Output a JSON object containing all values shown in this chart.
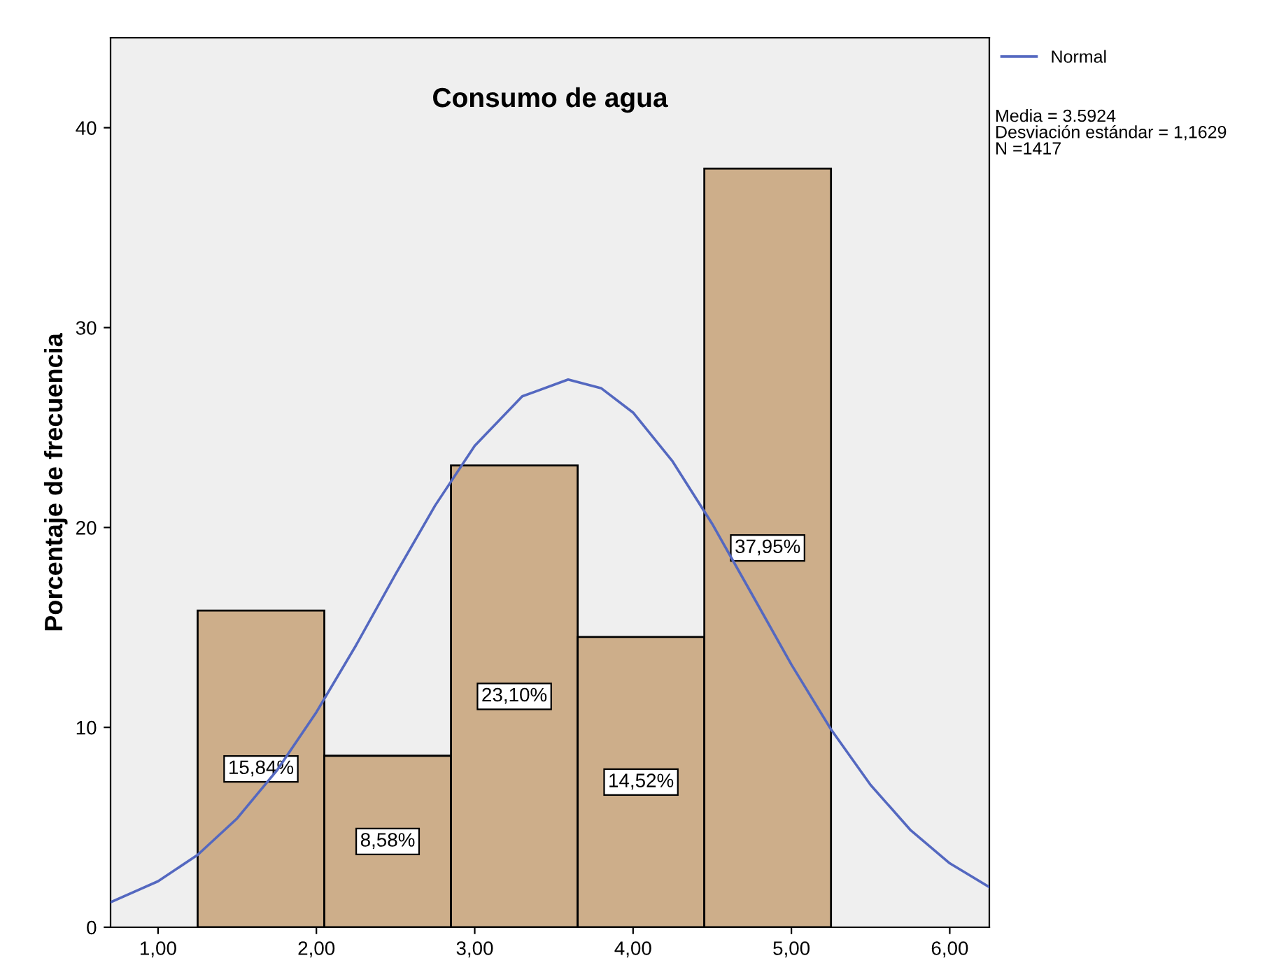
{
  "chart_data": [
    {
      "type": "histogram",
      "title": "Consumo de agua",
      "ylabel": "Porcentaje de frecuencia",
      "bins": [
        1.25,
        2.05,
        2.85,
        3.65,
        4.45,
        5.25
      ],
      "values": [
        15.84,
        8.58,
        23.1,
        14.52,
        37.95
      ],
      "color": "#cdae8a",
      "value_labels": [
        "15,84%",
        "8,58%",
        "23,10%",
        "14,52%",
        "37,95%"
      ],
      "xlim": [
        0.7,
        6.25
      ],
      "xticks": [
        {
          "value": 1,
          "label": "1,00"
        },
        {
          "value": 2,
          "label": "2,00"
        },
        {
          "value": 3,
          "label": "3,00"
        },
        {
          "value": 4,
          "label": "4,00"
        },
        {
          "value": 5,
          "label": "5,00"
        },
        {
          "value": 6,
          "label": "6,00"
        }
      ],
      "ylim": [
        0,
        44.5
      ],
      "yticks": [
        0,
        10,
        20,
        30,
        40
      ],
      "grid": false,
      "legend": "top right",
      "series": [
        {
          "type": "line",
          "name": "Normal",
          "color": "#5468c0",
          "x": [
            0.7,
            1.0,
            1.25,
            1.5,
            1.75,
            2.0,
            2.25,
            2.5,
            2.75,
            3.0,
            3.3,
            3.59,
            3.8,
            4.0,
            4.25,
            4.5,
            4.75,
            5.0,
            5.25,
            5.5,
            5.75,
            6.0,
            6.25
          ],
          "values": [
            1.25,
            2.3,
            3.62,
            5.45,
            7.84,
            10.76,
            14.1,
            17.66,
            21.1,
            24.09,
            26.56,
            27.4,
            26.96,
            25.75,
            23.3,
            20.18,
            16.67,
            13.14,
            9.9,
            7.12,
            4.88,
            3.2,
            2.01
          ]
        }
      ],
      "annotations": [
        "Media = 3.5924\nDesviación estándar = 1,1629\nN =1417"
      ]
    }
  ]
}
